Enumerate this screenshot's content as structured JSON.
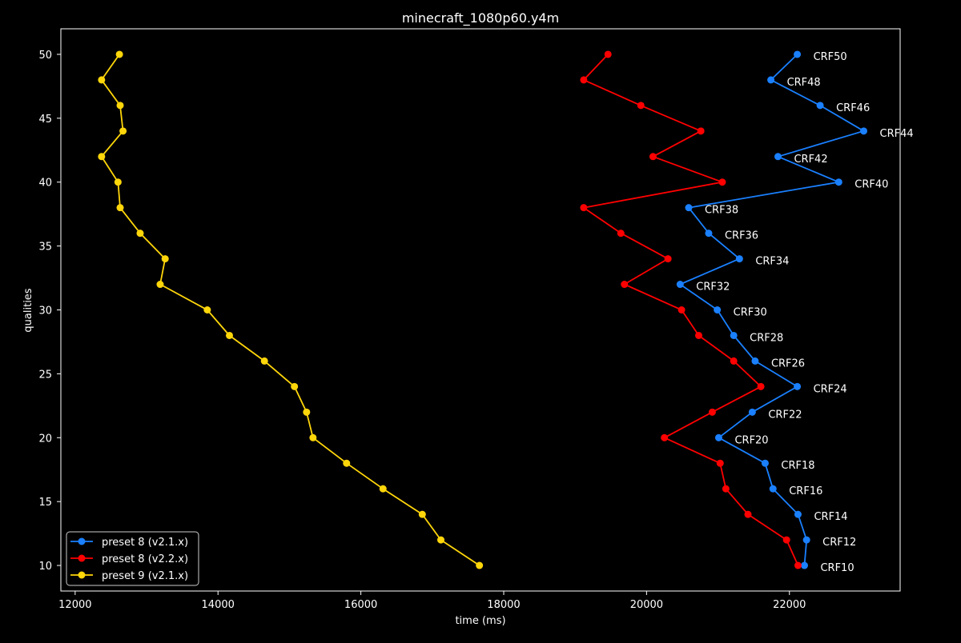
{
  "colors": {
    "background": "#000000",
    "axes": "#ffffff",
    "text": "#ffffff"
  },
  "chart_data": {
    "type": "line",
    "title": "minecraft_1080p60.y4m",
    "xlabel": "time (ms)",
    "ylabel": "qualities",
    "xlim": [
      11800,
      23550
    ],
    "ylim": [
      8,
      52
    ],
    "xticks": [
      12000,
      14000,
      16000,
      18000,
      20000,
      22000
    ],
    "yticks": [
      10,
      15,
      20,
      25,
      30,
      35,
      40,
      45,
      50
    ],
    "grid": false,
    "legend_position": "lower-left",
    "series": [
      {
        "name": "preset 8 (v2.1.x)",
        "color": "#1a80ff",
        "x": [
          22110,
          21740,
          22430,
          23040,
          21840,
          22690,
          20590,
          20870,
          21300,
          20470,
          20990,
          21220,
          21520,
          22110,
          21480,
          21010,
          21660,
          21770,
          22120,
          22240,
          22210
        ],
        "y": [
          50,
          48,
          46,
          44,
          42,
          40,
          38,
          36,
          34,
          32,
          30,
          28,
          26,
          24,
          22,
          20,
          18,
          16,
          14,
          12,
          10
        ],
        "point_labels": [
          "CRF50",
          "CRF48",
          "CRF46",
          "CRF44",
          "CRF42",
          "CRF40",
          "CRF38",
          "CRF36",
          "CRF34",
          "CRF32",
          "CRF30",
          "CRF28",
          "CRF26",
          "CRF24",
          "CRF22",
          "CRF20",
          "CRF18",
          "CRF16",
          "CRF14",
          "CRF12",
          "CRF10"
        ]
      },
      {
        "name": "preset 8 (v2.2.x)",
        "color": "#ff0000",
        "x": [
          19460,
          19120,
          19920,
          20760,
          20090,
          21060,
          19120,
          19640,
          20300,
          19690,
          20490,
          20730,
          21220,
          21600,
          20920,
          20250,
          21030,
          21110,
          21420,
          21960,
          22120
        ],
        "y": [
          50,
          48,
          46,
          44,
          42,
          40,
          38,
          36,
          34,
          32,
          30,
          28,
          26,
          24,
          22,
          20,
          18,
          16,
          14,
          12,
          10
        ]
      },
      {
        "name": "preset 9 (v2.1.x)",
        "color": "#ffd60a",
        "x": [
          12620,
          12370,
          12630,
          12670,
          12370,
          12600,
          12630,
          12910,
          13260,
          13190,
          13850,
          14160,
          14650,
          15070,
          15240,
          15330,
          15800,
          16310,
          16860,
          17120,
          17660
        ],
        "y": [
          50,
          48,
          46,
          44,
          42,
          40,
          38,
          36,
          34,
          32,
          30,
          28,
          26,
          24,
          22,
          20,
          18,
          16,
          14,
          12,
          10
        ]
      }
    ]
  }
}
